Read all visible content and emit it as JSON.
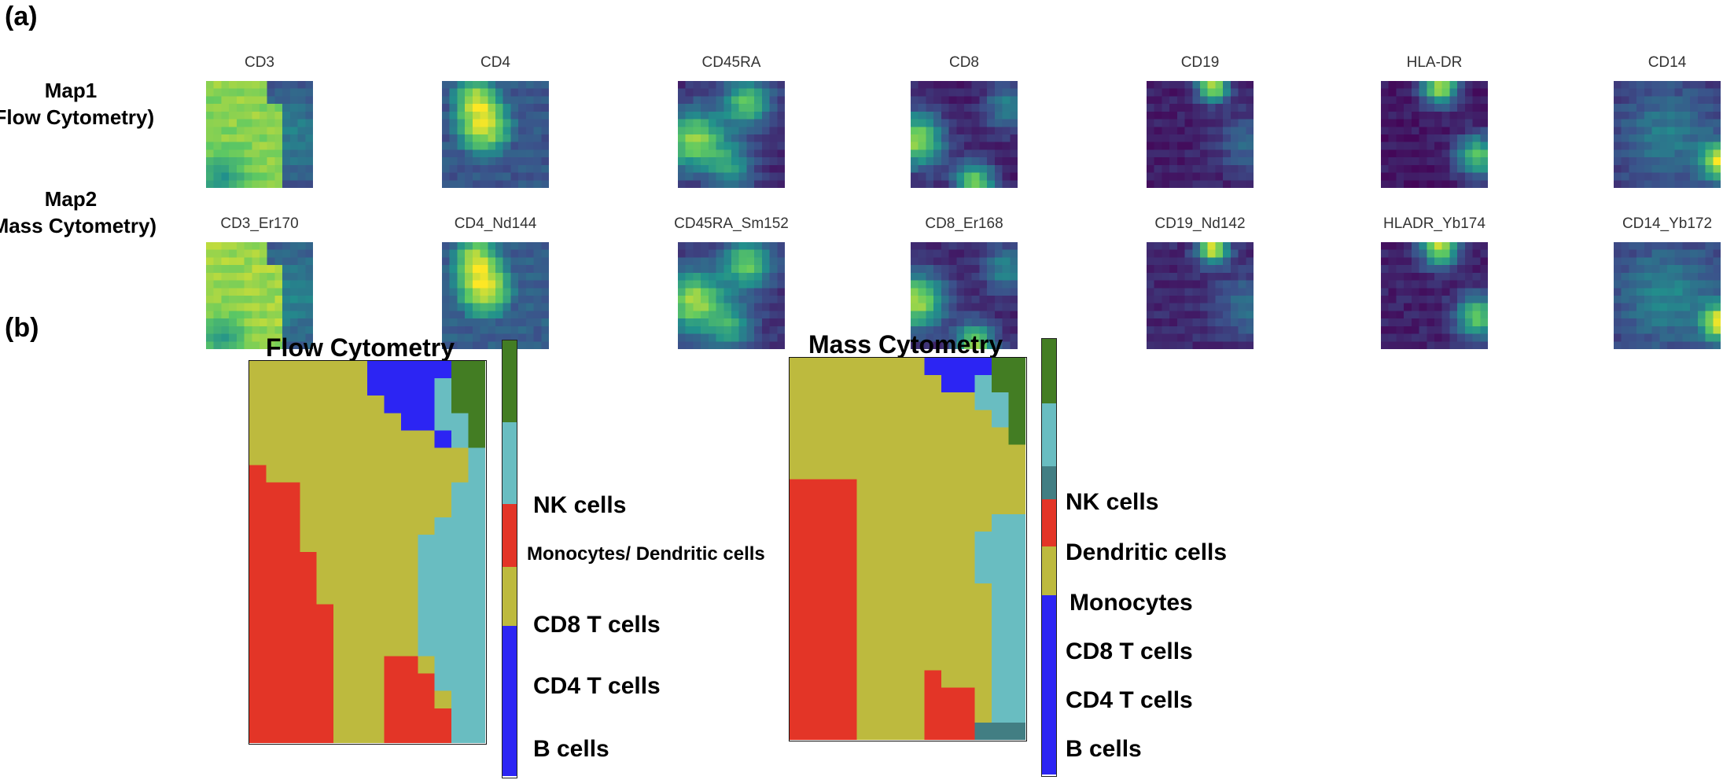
{
  "panel_a": {
    "label": "(a)",
    "rows": [
      {
        "title_line1": "Map1",
        "title_line2": "(Flow Cytometry)",
        "markers": [
          "CD3",
          "CD4",
          "CD45RA",
          "CD8",
          "CD19",
          "HLA-DR",
          "CD14"
        ]
      },
      {
        "title_line1": "Map2",
        "title_line2": "(Mass Cytometry)",
        "markers": [
          "CD3_Er170",
          "CD4_Nd144",
          "CD45RA_Sm152",
          "CD8_Er168",
          "CD19_Nd142",
          "HLADR_Yb174",
          "CD14_Yb172"
        ]
      }
    ],
    "colormap": "viridis"
  },
  "panel_b": {
    "label": "(b)",
    "maps": [
      {
        "title": "Flow Cytometry",
        "legend": [
          {
            "label": "NK cells",
            "color": "#437d23"
          },
          {
            "label": "Monocytes/ Dendritic cells",
            "color": "#69bdc1"
          },
          {
            "label": "CD8 T cells",
            "color": "#e33527"
          },
          {
            "label": "CD4 T cells",
            "color": "#bdba3e"
          },
          {
            "label": "B cells",
            "color": "#2c25f3"
          }
        ]
      },
      {
        "title": "Mass Cytometry",
        "legend": [
          {
            "label": "NK cells",
            "color": "#437d23"
          },
          {
            "label": "Dendritic cells",
            "color": "#69bdc1"
          },
          {
            "label": "Monocytes",
            "color": "#427e83"
          },
          {
            "label": "CD8 T cells",
            "color": "#e33527"
          },
          {
            "label": "CD4 T cells",
            "color": "#bdba3e"
          },
          {
            "label": "B cells",
            "color": "#2c25f3"
          }
        ]
      }
    ]
  }
}
